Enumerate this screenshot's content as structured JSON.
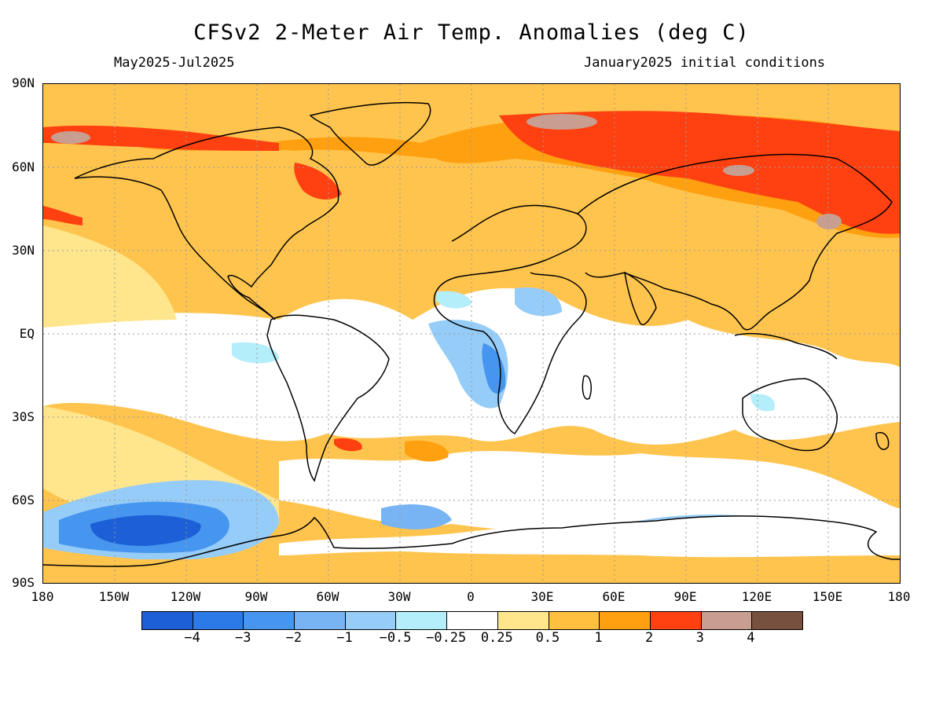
{
  "title": "CFSv2 2-Meter Air Temp. Anomalies (deg C)",
  "subtitle_left": "May2025-Jul2025",
  "subtitle_right": "January2025 initial conditions",
  "lat_labels": [
    "90N",
    "60N",
    "30N",
    "EQ",
    "30S",
    "60S",
    "90S"
  ],
  "lon_labels": [
    "180",
    "150W",
    "120W",
    "90W",
    "60W",
    "30W",
    "0",
    "30E",
    "60E",
    "90E",
    "120E",
    "150E",
    "180"
  ],
  "colorbar": {
    "colors": [
      "#1c5fd6",
      "#2c7ae8",
      "#4696f0",
      "#78b4f4",
      "#96ccf8",
      "#b4eefa",
      "#ffffff",
      "#ffe68c",
      "#ffc040",
      "#ffa010",
      "#ff4010",
      "#c89e90",
      "#785040"
    ],
    "labels": [
      "−4",
      "−3",
      "−2",
      "−1",
      "−0.5",
      "−0.25",
      "0.25",
      "0.5",
      "1",
      "2",
      "3",
      "4"
    ]
  }
}
